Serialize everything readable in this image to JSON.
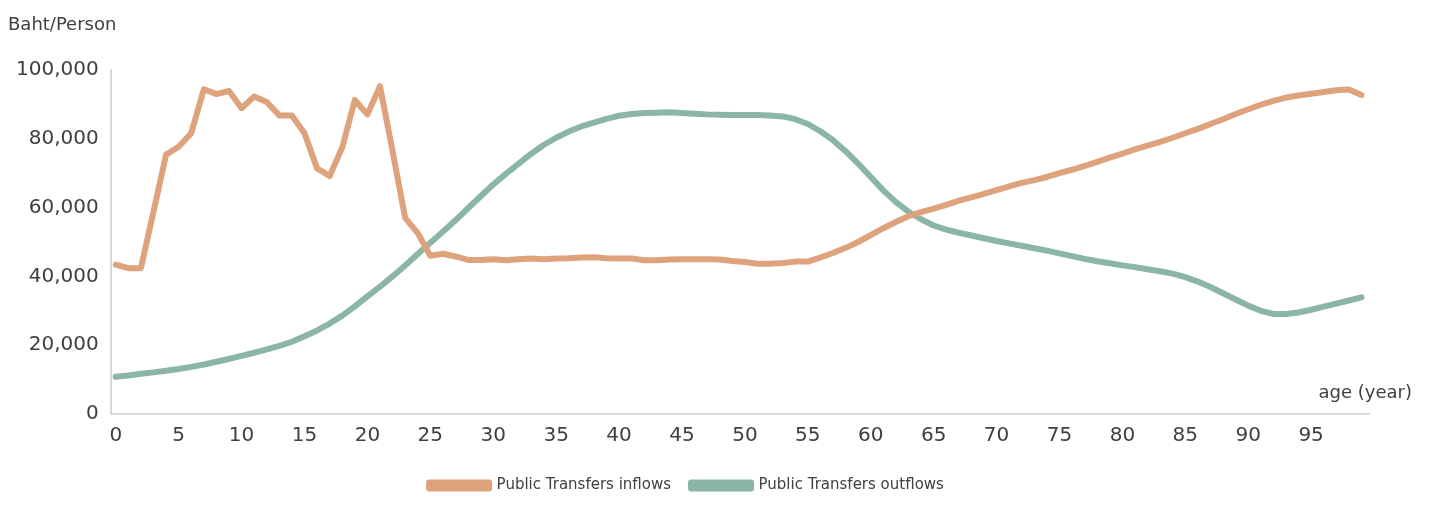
{
  "chart_data": {
    "type": "line",
    "xlabel": "age (year)",
    "ylabel": "Baht/Person",
    "x": [
      0,
      1,
      2,
      3,
      4,
      5,
      6,
      7,
      8,
      9,
      10,
      11,
      12,
      13,
      14,
      15,
      16,
      17,
      18,
      19,
      20,
      21,
      22,
      23,
      24,
      25,
      26,
      27,
      28,
      29,
      30,
      31,
      32,
      33,
      34,
      35,
      36,
      37,
      38,
      39,
      40,
      41,
      42,
      43,
      44,
      45,
      46,
      47,
      48,
      49,
      50,
      51,
      52,
      53,
      54,
      55,
      56,
      57,
      58,
      59,
      60,
      61,
      62,
      63,
      64,
      65,
      66,
      67,
      68,
      69,
      70,
      71,
      72,
      73,
      74,
      75,
      76,
      77,
      78,
      79,
      80,
      81,
      82,
      83,
      84,
      85,
      86,
      87,
      88,
      89,
      90,
      91,
      92,
      93,
      94,
      95,
      96,
      97,
      98,
      99
    ],
    "series": [
      {
        "name": "Public Transfers inflows",
        "color": "#dea27c",
        "values": [
          43400,
          42400,
          42400,
          58800,
          75400,
          77700,
          81600,
          94400,
          93000,
          93900,
          88900,
          92300,
          90700,
          86800,
          86800,
          81600,
          71400,
          69200,
          77500,
          91300,
          87100,
          95300,
          76400,
          57000,
          52600,
          46000,
          46600,
          45800,
          44800,
          44800,
          45000,
          44700,
          45000,
          45200,
          45000,
          45200,
          45300,
          45500,
          45600,
          45300,
          45200,
          45200,
          44700,
          44700,
          44900,
          45000,
          45000,
          45000,
          44900,
          44500,
          44200,
          43700,
          43700,
          43900,
          44300,
          44300,
          45500,
          46800,
          48300,
          50000,
          52000,
          54000,
          55800,
          57500,
          58700,
          59700,
          60800,
          62000,
          63000,
          64000,
          65100,
          66200,
          67200,
          68000,
          68900,
          70000,
          71000,
          72100,
          73300,
          74500,
          75700,
          76900,
          78000,
          79100,
          80300,
          81600,
          82900,
          84300,
          85700,
          87200,
          88600,
          89900,
          91000,
          92000,
          92600,
          93100,
          93600,
          94100,
          94300,
          92700
        ]
      },
      {
        "name": "Public Transfers outflows",
        "color": "#8bb5a5",
        "values": [
          10800,
          11200,
          11700,
          12100,
          12600,
          13100,
          13700,
          14400,
          15200,
          16000,
          16900,
          17800,
          18800,
          19800,
          21000,
          22600,
          24300,
          26300,
          28600,
          31300,
          34200,
          37000,
          40000,
          43200,
          46500,
          49800,
          53000,
          56300,
          59800,
          63300,
          66700,
          69800,
          72700,
          75600,
          78200,
          80300,
          82100,
          83600,
          84700,
          85800,
          86700,
          87200,
          87500,
          87600,
          87700,
          87500,
          87300,
          87100,
          87000,
          86900,
          86900,
          86900,
          86800,
          86500,
          85700,
          84300,
          82200,
          79600,
          76400,
          72800,
          68900,
          65000,
          61600,
          58800,
          56600,
          54800,
          53600,
          52700,
          51900,
          51100,
          50300,
          49600,
          48900,
          48200,
          47500,
          46700,
          45900,
          45100,
          44400,
          43800,
          43200,
          42700,
          42100,
          41500,
          40800,
          39800,
          38500,
          36900,
          35100,
          33300,
          31500,
          30000,
          29100,
          29100,
          29500,
          30300,
          31200,
          32100,
          33000,
          33900
        ]
      }
    ],
    "xlim": [
      -0.4,
      99.6
    ],
    "xticks": [
      0,
      5,
      10,
      15,
      20,
      25,
      30,
      35,
      40,
      45,
      50,
      55,
      60,
      65,
      70,
      75,
      80,
      85,
      90,
      95
    ],
    "ylim": [
      0,
      100000
    ],
    "yticks": [
      0,
      {
        "value": 20000,
        "label": "20,000"
      },
      {
        "value": 40000,
        "label": "40,000"
      },
      {
        "value": 60000,
        "label": "60,000"
      },
      {
        "value": 80000,
        "label": "80,000"
      },
      {
        "value": 100000,
        "label": "100,000"
      }
    ],
    "grid": false,
    "legend": "bottom",
    "marker": "none",
    "line_style": "solid"
  }
}
